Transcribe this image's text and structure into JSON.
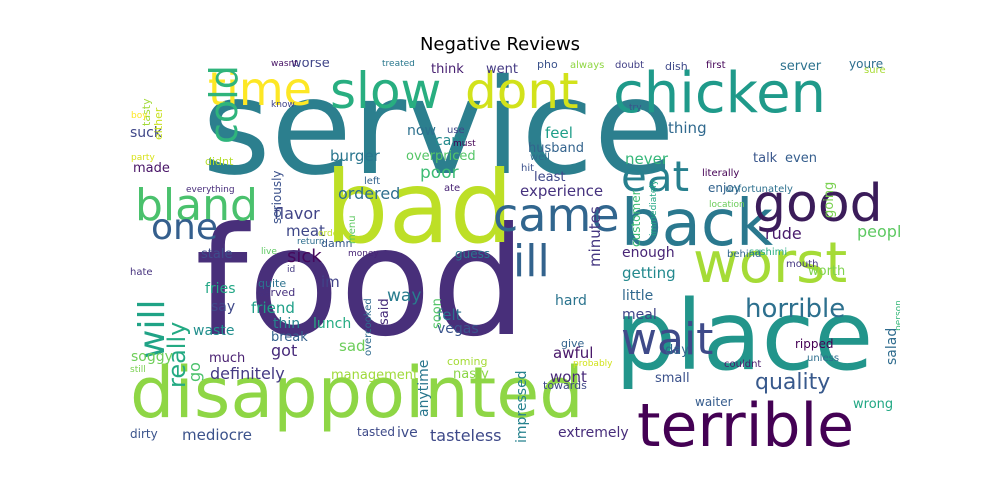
{
  "figure": {
    "title": "Negative Reviews"
  },
  "words": [
    {
      "text": "service",
      "color": "#2c7f8e"
    },
    {
      "text": "food",
      "color": "#482f7a"
    },
    {
      "text": "place",
      "color": "#22958b"
    },
    {
      "text": "bad",
      "color": "#bddf26"
    },
    {
      "text": "disappointed",
      "color": "#8ed645"
    },
    {
      "text": "worst",
      "color": "#a5db36"
    },
    {
      "text": "terrible",
      "color": "#440154"
    },
    {
      "text": "back",
      "color": "#2a788e"
    },
    {
      "text": "time",
      "color": "#fde725"
    },
    {
      "text": "slow",
      "color": "#28ae80"
    },
    {
      "text": "dont",
      "color": "#d2e21b"
    },
    {
      "text": "chicken",
      "color": "#1f9a8a"
    },
    {
      "text": "good",
      "color": "#3b1c5a"
    },
    {
      "text": "came",
      "color": "#31668e"
    },
    {
      "text": "eat",
      "color": "#27808e"
    },
    {
      "text": "ill",
      "color": "#33638d"
    },
    {
      "text": "bland",
      "color": "#4ac16d"
    },
    {
      "text": "one",
      "color": "#355f8d"
    },
    {
      "text": "cold",
      "color": "#2fb47c"
    },
    {
      "text": "will",
      "color": "#20a386"
    },
    {
      "text": "wait",
      "color": "#3e4a89"
    },
    {
      "text": "want",
      "color": "#21918c"
    },
    {
      "text": "really",
      "color": "#24aa83"
    },
    {
      "text": "horrible",
      "color": "#2d708e"
    },
    {
      "text": "quality",
      "color": "#38598c"
    },
    {
      "text": "definitely",
      "color": "#443983"
    },
    {
      "text": "experience",
      "color": "#46327e"
    },
    {
      "text": "flavor",
      "color": "#414487"
    },
    {
      "text": "mediocre",
      "color": "#3b528b"
    },
    {
      "text": "tasteless",
      "color": "#3e4989"
    },
    {
      "text": "extremely",
      "color": "#472d7b"
    },
    {
      "text": "people",
      "color": "#5ec962"
    },
    {
      "text": "ordered",
      "color": "#2e6f8e"
    },
    {
      "text": "sick",
      "color": "#46085c"
    },
    {
      "text": "way",
      "color": "#287c8e"
    },
    {
      "text": "meat",
      "color": "#3f4788"
    },
    {
      "text": "burger",
      "color": "#2a768e"
    },
    {
      "text": "poor",
      "color": "#3dbc74"
    },
    {
      "text": "never",
      "color": "#35b779"
    },
    {
      "text": "thing",
      "color": "#30698e"
    },
    {
      "text": "rude",
      "color": "#481a6c"
    },
    {
      "text": "getting",
      "color": "#23898e"
    },
    {
      "text": "enough",
      "color": "#482576"
    },
    {
      "text": "little",
      "color": "#31688e"
    },
    {
      "text": "meal",
      "color": "#404688"
    },
    {
      "text": "salad",
      "color": "#2f6c8e"
    },
    {
      "text": "going",
      "color": "#7ad151"
    },
    {
      "text": "minutes",
      "color": "#453781"
    },
    {
      "text": "impressed",
      "color": "#26828e"
    },
    {
      "text": "worse",
      "color": "#404588"
    },
    {
      "text": "wont",
      "color": "#482979"
    },
    {
      "text": "awful",
      "color": "#481769"
    },
    {
      "text": "felt",
      "color": "#2c728e"
    },
    {
      "text": "vegas",
      "color": "#3a548c"
    },
    {
      "text": "hard",
      "color": "#2b748e"
    },
    {
      "text": "friend",
      "color": "#1fa088"
    },
    {
      "text": "got",
      "color": "#472a7a"
    },
    {
      "text": "thin",
      "color": "#25848e"
    },
    {
      "text": "lunch",
      "color": "#25ab82"
    },
    {
      "text": "sad",
      "color": "#6ccd5a"
    },
    {
      "text": "break",
      "color": "#34618d"
    },
    {
      "text": "management",
      "color": "#9fda3a"
    },
    {
      "text": "say",
      "color": "#3f4889"
    },
    {
      "text": "im",
      "color": "#414287"
    },
    {
      "text": "waste",
      "color": "#218f8d"
    },
    {
      "text": "fries",
      "color": "#22a785"
    },
    {
      "text": "soggy",
      "color": "#6ece58"
    },
    {
      "text": "much",
      "color": "#481f70"
    },
    {
      "text": "go",
      "color": "#4cc26c"
    },
    {
      "text": "stale",
      "color": "#3e4c8a"
    },
    {
      "text": "dirty",
      "color": "#3a538b"
    },
    {
      "text": "anytime",
      "color": "#2a778e"
    },
    {
      "text": "soon",
      "color": "#54c568"
    },
    {
      "text": "said",
      "color": "#472c7a"
    },
    {
      "text": "nasty",
      "color": "#8bd646"
    },
    {
      "text": "small",
      "color": "#3b518b"
    },
    {
      "text": "day",
      "color": "#31668e"
    },
    {
      "text": "wrong",
      "color": "#22a884"
    },
    {
      "text": "waiter",
      "color": "#365c8d"
    },
    {
      "text": "ive",
      "color": "#3e4c8a"
    },
    {
      "text": "tasted",
      "color": "#3e4a89"
    },
    {
      "text": "feel",
      "color": "#1f9e89"
    },
    {
      "text": "husband",
      "color": "#33638d"
    },
    {
      "text": "cant",
      "color": "#238a8d"
    },
    {
      "text": "overpriced",
      "color": "#55c667"
    },
    {
      "text": "least",
      "color": "#3f4889"
    },
    {
      "text": "now",
      "color": "#2d718e"
    },
    {
      "text": "think",
      "color": "#482071"
    },
    {
      "text": "went",
      "color": "#443a83"
    },
    {
      "text": "server",
      "color": "#2c728e"
    },
    {
      "text": "talk",
      "color": "#39568c"
    },
    {
      "text": "even",
      "color": "#355e8d"
    },
    {
      "text": "enjoy",
      "color": "#33638d"
    },
    {
      "text": "suck",
      "color": "#3f4788"
    },
    {
      "text": "made",
      "color": "#481467"
    },
    {
      "text": "youre",
      "color": "#2e6e8e"
    },
    {
      "text": "sure",
      "color": "#a8db34"
    },
    {
      "text": "tasty",
      "color": "#a2da37"
    },
    {
      "text": "either",
      "color": "#c8e020"
    },
    {
      "text": "boy",
      "color": "#fde725"
    },
    {
      "text": "party",
      "color": "#d8e219"
    },
    {
      "text": "didnt",
      "color": "#b5de2b"
    },
    {
      "text": "everything",
      "color": "#472c7a"
    },
    {
      "text": "seriously",
      "color": "#3b518b"
    },
    {
      "text": "left",
      "color": "#33638d"
    },
    {
      "text": "ate",
      "color": "#482374"
    },
    {
      "text": "know",
      "color": "#404588"
    },
    {
      "text": "wasnt",
      "color": "#471365"
    },
    {
      "text": "treated",
      "color": "#2a788e"
    },
    {
      "text": "pho",
      "color": "#3b528b"
    },
    {
      "text": "always",
      "color": "#90d743"
    },
    {
      "text": "doubt",
      "color": "#424086"
    },
    {
      "text": "dish",
      "color": "#3e4989"
    },
    {
      "text": "first",
      "color": "#450559"
    },
    {
      "text": "must",
      "color": "#440154"
    },
    {
      "text": "hit",
      "color": "#3b518b"
    },
    {
      "text": "money",
      "color": "#482576"
    },
    {
      "text": "overcooked",
      "color": "#2f6b8e"
    },
    {
      "text": "use",
      "color": "#404688"
    },
    {
      "text": "well",
      "color": "#2f6c8e"
    },
    {
      "text": "try",
      "color": "#3b528b"
    },
    {
      "text": "customer",
      "color": "#3dbc74"
    },
    {
      "text": "immediately",
      "color": "#22a884"
    },
    {
      "text": "literally",
      "color": "#440154"
    },
    {
      "text": "unfortunately",
      "color": "#2d708e"
    },
    {
      "text": "location",
      "color": "#6ccd5a"
    },
    {
      "text": "sashimi",
      "color": "#27ad81"
    },
    {
      "text": "mouth",
      "color": "#453781"
    },
    {
      "text": "worth",
      "color": "#7fd34e"
    },
    {
      "text": "behind",
      "color": "#31678e"
    },
    {
      "text": "couldnt",
      "color": "#481b6d"
    },
    {
      "text": "unless",
      "color": "#2e6e8e"
    },
    {
      "text": "ripped",
      "color": "#440154"
    },
    {
      "text": "person",
      "color": "#35b779"
    },
    {
      "text": "probably",
      "color": "#d2e21b"
    },
    {
      "text": "give",
      "color": "#33638d"
    },
    {
      "text": "towards",
      "color": "#3f4788"
    },
    {
      "text": "coming",
      "color": "#a5db36"
    },
    {
      "text": "guess",
      "color": "#2a768e"
    },
    {
      "text": "hate",
      "color": "#46327e"
    },
    {
      "text": "quite",
      "color": "#2c728e"
    },
    {
      "text": "served",
      "color": "#46307e"
    },
    {
      "text": "id",
      "color": "#443a83"
    },
    {
      "text": "live",
      "color": "#5ec962"
    },
    {
      "text": "return",
      "color": "#2e6e8e"
    },
    {
      "text": "damn",
      "color": "#37598c"
    },
    {
      "text": "order",
      "color": "#bddf26"
    },
    {
      "text": "menu",
      "color": "#5ec962"
    },
    {
      "text": "still",
      "color": "#7ad151"
    }
  ]
}
